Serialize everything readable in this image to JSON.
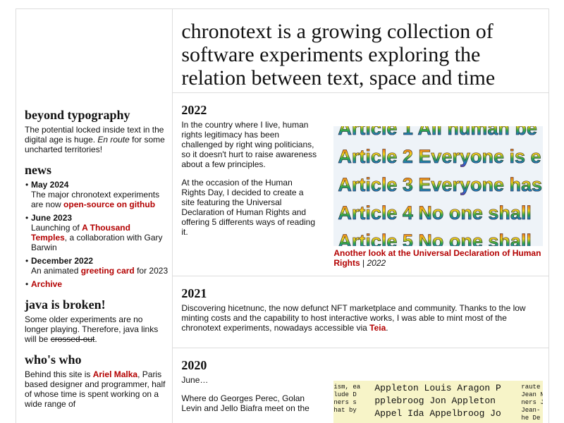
{
  "header": {
    "title": "chronotext is a growing collection of software experiments exploring the relation between text, space and time"
  },
  "sidebar": {
    "beyond": {
      "heading": "beyond typography",
      "text1": "The potential locked inside text in the digital age is huge. ",
      "em": "En route",
      "text2": " for some uncharted territories!"
    },
    "news": {
      "heading": "news",
      "items": [
        {
          "date": "May 2024",
          "text1": "The major chronotext experiments are now ",
          "link": "open-source on github",
          "text2": ""
        },
        {
          "date": "June 2023",
          "text1": "Launching of ",
          "link": "A Thousand Temples",
          "text2": ", a collaboration with Gary Barwin"
        },
        {
          "date": "December 2022",
          "text1": "An animated ",
          "link": "greeting card",
          "text2": " for 2023"
        }
      ],
      "archive": "Archive"
    },
    "java": {
      "heading": "java is broken!",
      "text1": "Some older experiments are no longer playing. Therefore, java links will be ",
      "strike": "crossed-out",
      "text2": "."
    },
    "who": {
      "heading": "who's who",
      "text1": "Behind this site is ",
      "link": "Ariel Malka",
      "text2": ", Paris based designer and programmer, half of whose time is spent working on a wide range of"
    }
  },
  "sections": [
    {
      "year": "2022",
      "paragraphs": [
        "In the country where I live, human rights legitimacy has been challenged by right wing politicians, so it doesn't hurt to raise awareness about a few principles.",
        "At the occasion of the Human Rights Day, I decided to create a site featuring the Universal Declaration of Human Rights and offering 5 differents ways of reading it."
      ],
      "image_lines": [
        "Article 1 All human be",
        "Article 2 Everyone is e",
        "Article 3 Everyone has",
        "Article 4 No one shall",
        "Article 5 No one shall"
      ],
      "caption": {
        "link": "Another look at the Universal Declaration of Human Rights",
        "separator": " | ",
        "year": "2022"
      }
    },
    {
      "year": "2021",
      "text1": "Discovering hicetnunc, the now defunct NFT marketplace and community. Thanks to the low minting costs and the capability to host interactive works, I was able to mint most of the chronotext experiments, nowadays accessible via ",
      "link": "Teia",
      "text2": "."
    },
    {
      "year": "2020",
      "paragraphs": [
        "June…",
        "Where do Georges Perec, Golan Levin and Jello Biafra meet on the"
      ],
      "image_left": [
        "ism, ea",
        "lude D",
        "ners s",
        "hat by"
      ],
      "image_lines": [
        "Appleton Louis Aragon Pierr",
        "pplebroog Jon Appleton Loui",
        "Appel Ida Appelbroog Jon Ar"
      ],
      "image_right": [
        "raute , e",
        "Jean Nath",
        "ners Jea",
        "Jean-",
        "he De"
      ]
    }
  ]
}
